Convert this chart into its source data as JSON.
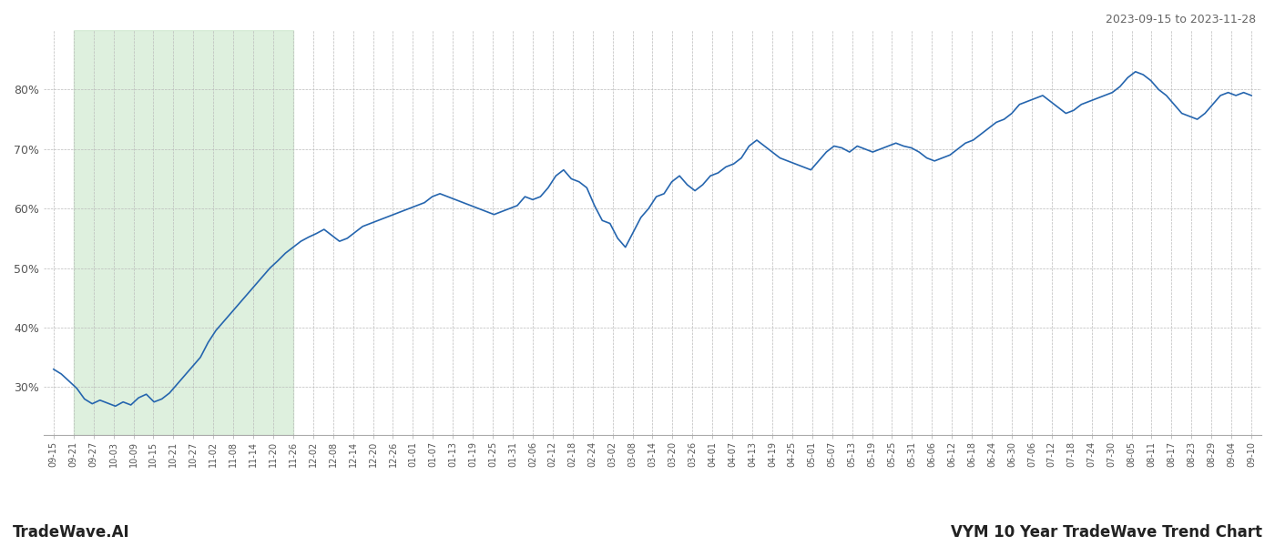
{
  "title_top_right": "2023-09-15 to 2023-11-28",
  "bottom_left_text": "TradeWave.AI",
  "bottom_right_text": "VYM 10 Year TradeWave Trend Chart",
  "line_color": "#2565ae",
  "line_width": 1.2,
  "shade_color": "#c8e6c9",
  "shade_alpha": 0.6,
  "background_color": "#ffffff",
  "grid_color": "#bbbbbb",
  "ylim": [
    22,
    90
  ],
  "yticks": [
    30,
    40,
    50,
    60,
    70,
    80
  ],
  "shade_start_label": "09-21",
  "shade_end_label": "11-26",
  "x_labels": [
    "09-15",
    "09-21",
    "09-27",
    "10-03",
    "10-09",
    "10-15",
    "10-21",
    "10-27",
    "11-02",
    "11-08",
    "11-14",
    "11-20",
    "11-26",
    "12-02",
    "12-08",
    "12-14",
    "12-20",
    "12-26",
    "01-01",
    "01-07",
    "01-13",
    "01-19",
    "01-25",
    "01-31",
    "02-06",
    "02-12",
    "02-18",
    "02-24",
    "03-02",
    "03-08",
    "03-14",
    "03-20",
    "03-26",
    "04-01",
    "04-07",
    "04-13",
    "04-19",
    "04-25",
    "05-01",
    "05-07",
    "05-13",
    "05-19",
    "05-25",
    "05-31",
    "06-06",
    "06-12",
    "06-18",
    "06-24",
    "06-30",
    "07-06",
    "07-12",
    "07-18",
    "07-24",
    "07-30",
    "08-05",
    "08-11",
    "08-17",
    "08-23",
    "08-29",
    "09-04",
    "09-10"
  ],
  "y_values": [
    33.0,
    32.2,
    31.0,
    29.8,
    28.0,
    27.2,
    27.8,
    27.3,
    26.8,
    27.5,
    27.0,
    28.2,
    28.8,
    27.5,
    28.0,
    29.0,
    30.5,
    32.0,
    33.5,
    35.0,
    37.5,
    39.5,
    41.0,
    42.5,
    44.0,
    45.5,
    47.0,
    48.5,
    50.0,
    51.2,
    52.5,
    53.5,
    54.5,
    55.2,
    55.8,
    56.5,
    55.5,
    54.5,
    55.0,
    56.0,
    57.0,
    57.5,
    58.0,
    58.5,
    59.0,
    59.5,
    60.0,
    60.5,
    61.0,
    62.0,
    62.5,
    62.0,
    61.5,
    61.0,
    60.5,
    60.0,
    59.5,
    59.0,
    59.5,
    60.0,
    60.5,
    62.0,
    61.5,
    62.0,
    63.5,
    65.5,
    66.5,
    65.0,
    64.5,
    63.5,
    60.5,
    58.0,
    57.5,
    55.0,
    53.5,
    56.0,
    58.5,
    60.0,
    62.0,
    62.5,
    64.5,
    65.5,
    64.0,
    63.0,
    64.0,
    65.5,
    66.0,
    67.0,
    67.5,
    68.5,
    70.5,
    71.5,
    70.5,
    69.5,
    68.5,
    68.0,
    67.5,
    67.0,
    66.5,
    68.0,
    69.5,
    70.5,
    70.2,
    69.5,
    70.5,
    70.0,
    69.5,
    70.0,
    70.5,
    71.0,
    70.5,
    70.2,
    69.5,
    68.5,
    68.0,
    68.5,
    69.0,
    70.0,
    71.0,
    71.5,
    72.5,
    73.5,
    74.5,
    75.0,
    76.0,
    77.5,
    78.0,
    78.5,
    79.0,
    78.0,
    77.0,
    76.0,
    76.5,
    77.5,
    78.0,
    78.5,
    79.0,
    79.5,
    80.5,
    82.0,
    83.0,
    82.5,
    81.5,
    80.0,
    79.0,
    77.5,
    76.0,
    75.5,
    75.0,
    76.0,
    77.5,
    79.0,
    79.5,
    79.0,
    79.5,
    79.0
  ]
}
